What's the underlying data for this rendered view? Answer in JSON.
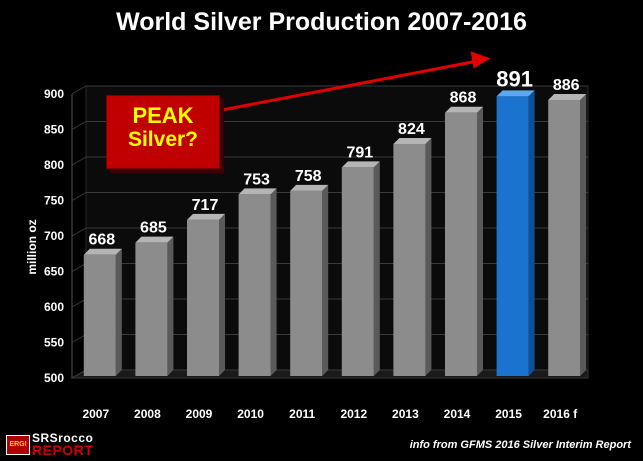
{
  "chart_data": {
    "type": "bar",
    "title": "World Silver Production 2007-2016",
    "ylabel": "million oz",
    "xlabel": "",
    "categories": [
      "2007",
      "2008",
      "2009",
      "2010",
      "2011",
      "2012",
      "2013",
      "2014",
      "2015",
      "2016 f"
    ],
    "values": [
      668,
      685,
      717,
      753,
      758,
      791,
      824,
      868,
      891,
      886
    ],
    "value_labels": [
      "668",
      "685",
      "717",
      "753",
      "758",
      "791",
      "824",
      "868",
      "891",
      "886"
    ],
    "highlight_index": 8,
    "ylim": [
      500,
      900
    ],
    "yticks": [
      500,
      550,
      600,
      650,
      700,
      750,
      800,
      850,
      900
    ],
    "grid": true,
    "colors": {
      "bar": "#8c8c8c",
      "highlight": "#1a74cf",
      "background": "#000000",
      "arrow": "#e00000"
    }
  },
  "annotation": {
    "line1": "PEAK",
    "line2": "Silver?"
  },
  "source_text": "info from GFMS 2016 Silver Interim Report",
  "logo": {
    "badge": "ERGI",
    "line1": "SRSrocco",
    "line2": "REPORT"
  }
}
